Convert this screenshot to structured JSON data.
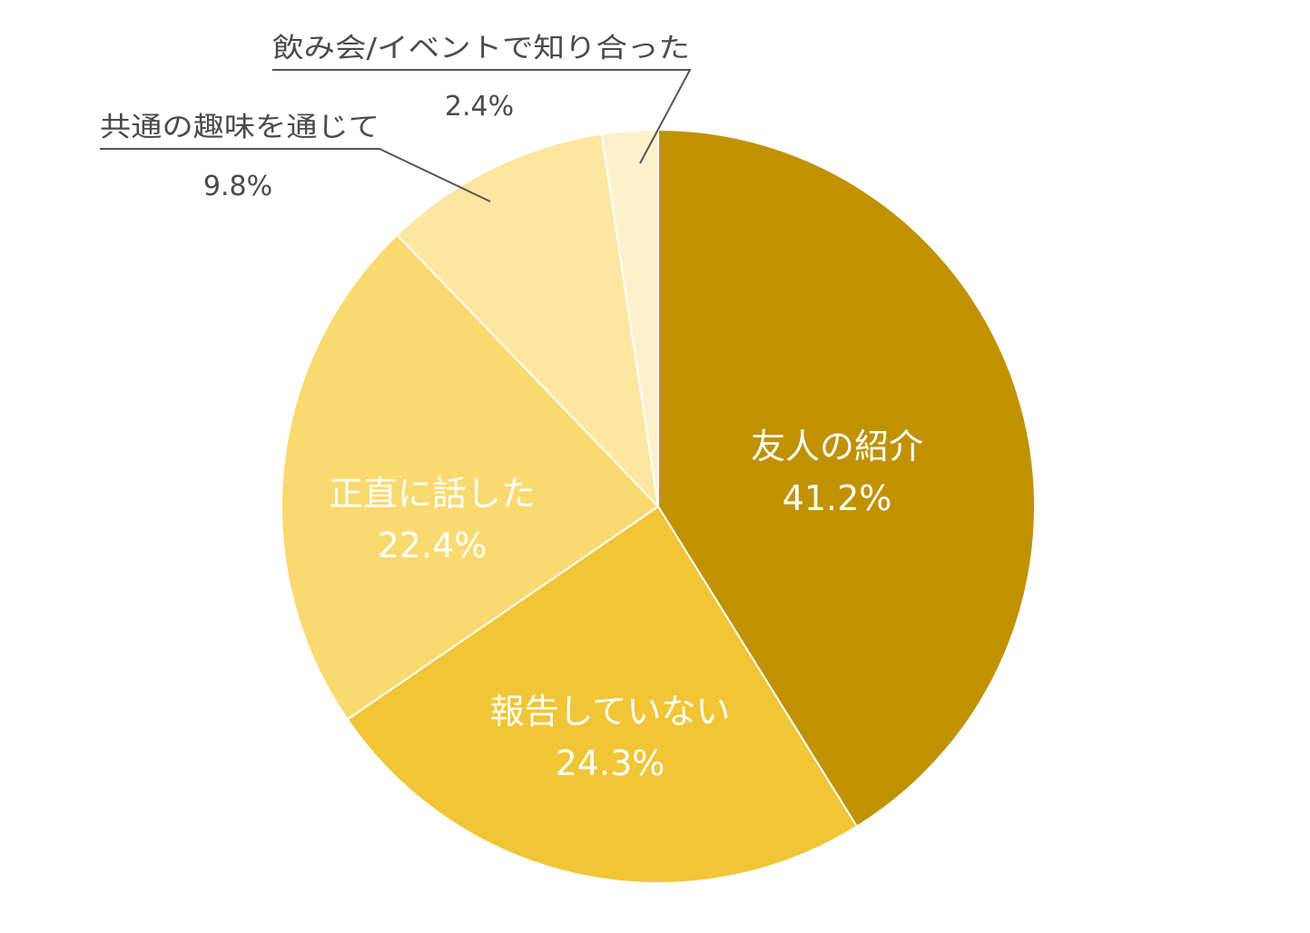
{
  "chart_data": {
    "type": "pie",
    "start": "12 o'clock",
    "direction": "clockwise",
    "slices": [
      {
        "label": "友人の紹介",
        "value": 41.2,
        "value_label": "41.2%",
        "color": "#c09200",
        "label_position": "inside"
      },
      {
        "label": "報告していない",
        "value": 24.3,
        "value_label": "24.3%",
        "color": "#f0c536",
        "label_position": "inside"
      },
      {
        "label": "正直に話した",
        "value": 22.4,
        "value_label": "22.4%",
        "color": "#fad96e",
        "label_position": "inside"
      },
      {
        "label": "共通の趣味を通じて",
        "value": 9.8,
        "value_label": "9.8%",
        "color": "#fde6a0",
        "label_position": "outside"
      },
      {
        "label": "飲み会/イベントで知り合った",
        "value": 2.4,
        "value_label": "2.4%",
        "color": "#fff0cc",
        "label_position": "outside"
      }
    ]
  }
}
